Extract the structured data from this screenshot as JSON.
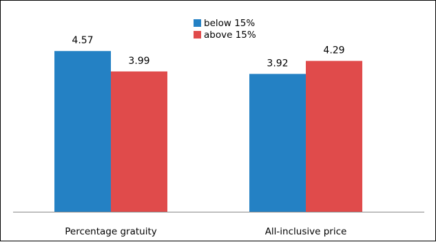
{
  "chart_data": {
    "type": "bar",
    "title": "",
    "xlabel": "",
    "ylabel": "",
    "categories": [
      "Percentage gratuity",
      "All-inclusive price"
    ],
    "series": [
      {
        "name": "below 15%",
        "values": [
          4.57,
          3.92
        ],
        "color": "#2481c4"
      },
      {
        "name": "above 15%",
        "values": [
          3.99,
          4.29
        ],
        "color": "#e04b4b"
      }
    ],
    "ylim": [
      0,
      5
    ],
    "show_y_axis": false,
    "grid": false,
    "legend_position": "top-center",
    "data_labels": true
  }
}
